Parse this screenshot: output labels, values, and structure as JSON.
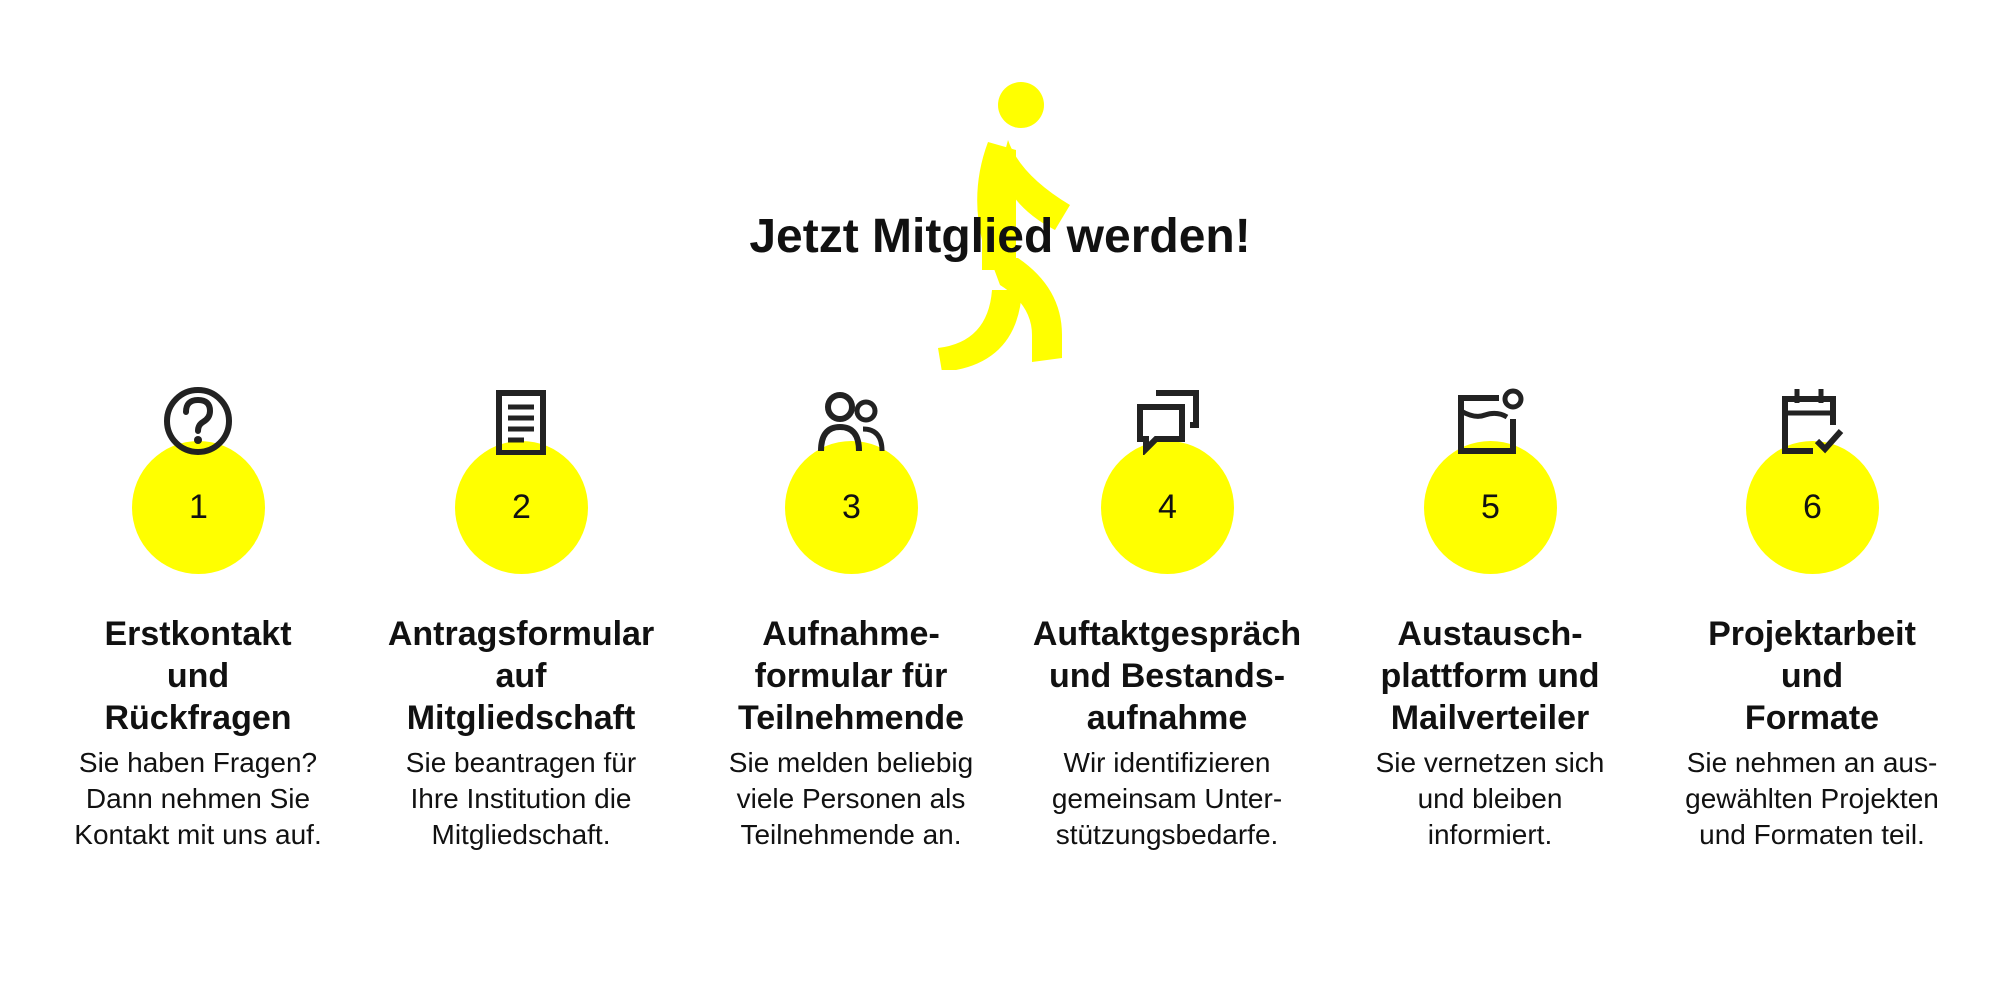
{
  "title": "Jetzt Mitglied werden!",
  "accent_color": "#ffff00",
  "icon_color": "#222222",
  "steps": [
    {
      "number": "1",
      "icon": "question-mark-icon",
      "title": "Erstkontakt\nund\nRückfragen",
      "description": "Sie haben Fragen?\nDann nehmen Sie\nKontakt mit uns auf."
    },
    {
      "number": "2",
      "icon": "document-icon",
      "title": "Antragsformular\nauf\nMitgliedschaft",
      "description": "Sie beantragen für\nIhre Institution die\nMitgliedschaft."
    },
    {
      "number": "3",
      "icon": "people-icon",
      "title": "Aufnahme-\nformular für\nTeilnehmende",
      "description": "Sie melden beliebig\nviele Personen als\nTeilnehmende an."
    },
    {
      "number": "4",
      "icon": "chat-bubbles-icon",
      "title": "Auftaktgespräch\nund Bestands-\naufnahme",
      "description": "Wir identifizieren\ngemeinsam Unter-\nstützungsbedarfe."
    },
    {
      "number": "5",
      "icon": "mail-notification-icon",
      "title": "Austausch-\nplattform und\nMailverteiler",
      "description": "Sie vernetzen sich\nund bleiben\ninformiert."
    },
    {
      "number": "6",
      "icon": "calendar-check-icon",
      "title": "Projektarbeit\nund\nFormate",
      "description": "Sie nehmen an aus-\ngewählten Projekten\nund Formaten teil."
    }
  ]
}
